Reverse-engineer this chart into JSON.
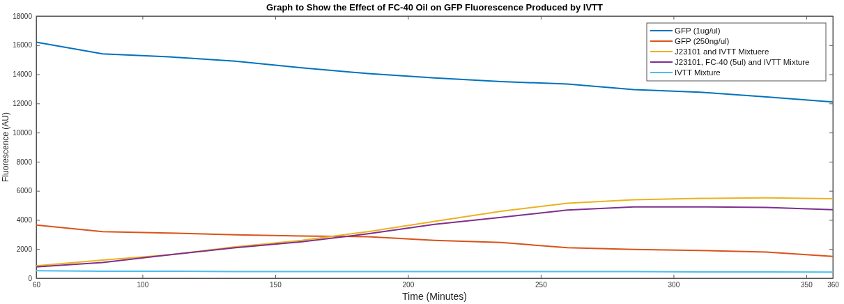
{
  "chart_data": {
    "type": "line",
    "title": "Graph to Show the Effect of FC-40 Oil on GFP Fluorescence Produced by IVTT",
    "xlabel": "Time (Minutes)",
    "ylabel": "Fluorescence (AU)",
    "x": [
      60,
      85,
      110,
      135,
      160,
      185,
      210,
      235,
      260,
      285,
      310,
      335,
      360
    ],
    "xlim": [
      60,
      360
    ],
    "xticks": [
      60,
      100,
      150,
      200,
      250,
      300,
      350,
      360
    ],
    "ylim": [
      0,
      18000
    ],
    "yticks": [
      0,
      2000,
      4000,
      6000,
      8000,
      10000,
      12000,
      14000,
      16000,
      18000
    ],
    "grid": false,
    "legend": "top right",
    "line_style": "solid",
    "marker": "none",
    "series": [
      {
        "name": "GFP (1ug/ul)",
        "color": "#0072bd",
        "values": [
          16200,
          15400,
          15200,
          14900,
          14450,
          14050,
          13750,
          13500,
          13330,
          12950,
          12770,
          12450,
          12100
        ]
      },
      {
        "name": "GFP (250ng/ul)",
        "color": "#d95319",
        "values": [
          3650,
          3200,
          3100,
          2980,
          2900,
          2850,
          2600,
          2450,
          2100,
          1980,
          1900,
          1800,
          1500
        ]
      },
      {
        "name": "J23101 and IVTT Mixtuere",
        "color": "#edb120",
        "values": [
          850,
          1250,
          1600,
          2150,
          2600,
          3200,
          3900,
          4600,
          5150,
          5380,
          5480,
          5520,
          5460
        ]
      },
      {
        "name": "J23101, FC-40 (5ul) and IVTT Mixture",
        "color": "#7e2f8e",
        "values": [
          780,
          1080,
          1600,
          2100,
          2500,
          3050,
          3700,
          4180,
          4680,
          4900,
          4900,
          4860,
          4700
        ]
      },
      {
        "name": "IVTT Mixture",
        "color": "#4dbeee",
        "values": [
          520,
          480,
          480,
          460,
          450,
          450,
          450,
          450,
          450,
          450,
          430,
          430,
          420
        ]
      }
    ]
  }
}
